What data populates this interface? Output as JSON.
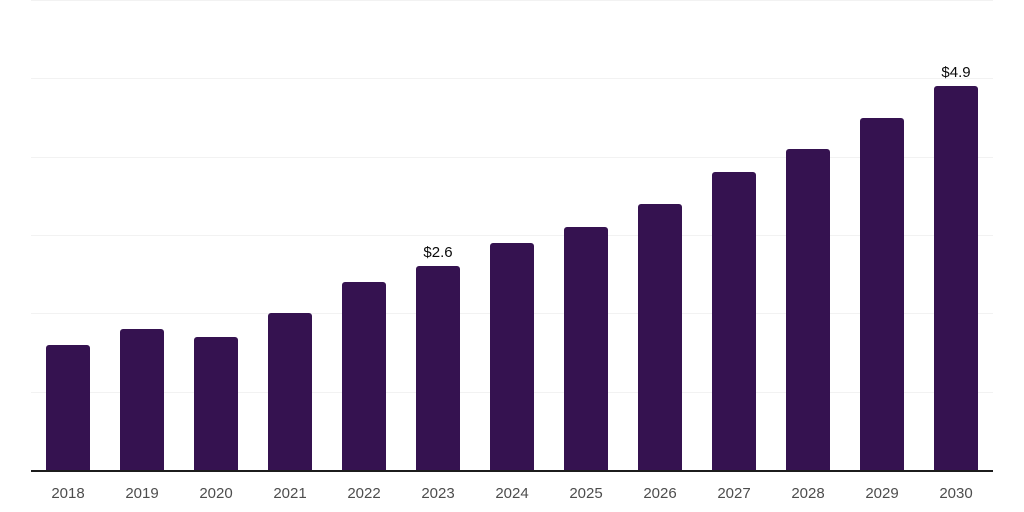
{
  "chart_data": {
    "type": "bar",
    "categories": [
      "2018",
      "2019",
      "2020",
      "2021",
      "2022",
      "2023",
      "2024",
      "2025",
      "2026",
      "2027",
      "2028",
      "2029",
      "2030"
    ],
    "values": [
      1.6,
      1.8,
      1.7,
      2.0,
      2.4,
      2.6,
      2.9,
      3.1,
      3.4,
      3.8,
      4.1,
      4.5,
      4.9
    ],
    "data_labels": [
      "",
      "",
      "",
      "",
      "",
      "$2.6",
      "",
      "",
      "",
      "",
      "",
      "",
      "$4.9"
    ],
    "ylim": [
      0,
      6
    ],
    "gridline_interval": 1,
    "grid": "horizontal-only",
    "legend": "none",
    "y_axis_tick_labels": "none",
    "bar_corner": "rounded-top"
  },
  "colors": {
    "background": "#ffffff",
    "bar": "#351250",
    "gridline": "#f2f2f2",
    "axis_line": "#1c1c1c",
    "tick_label": "#4d4d4d",
    "data_label": "#0a0a0a"
  }
}
